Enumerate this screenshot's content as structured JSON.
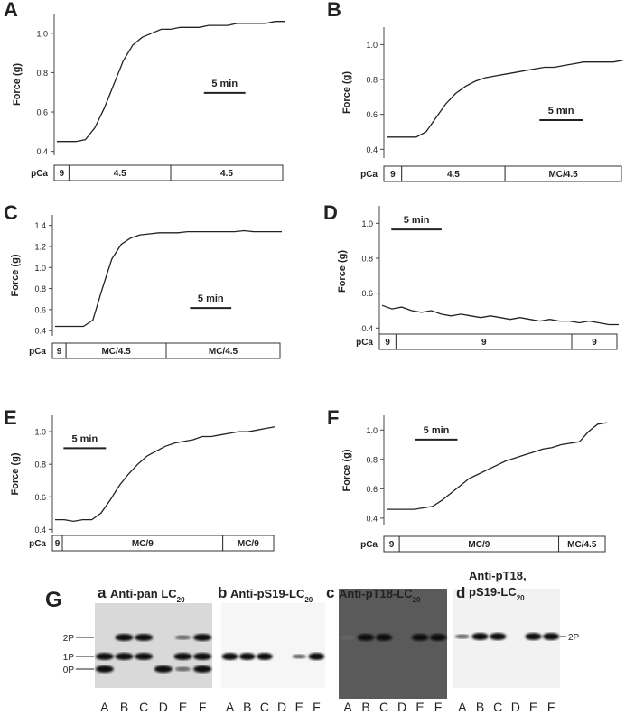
{
  "chart_data": [
    {
      "type": "line",
      "panel_label": "A",
      "ylabel": "Force (g)",
      "ylim": [
        0.38,
        1.1
      ],
      "yticks": [
        0.4,
        0.6,
        0.8,
        {
          "value": 1,
          "label": "1.0"
        }
      ],
      "annotation": "5 min",
      "color": "#222222",
      "values": [
        0.45,
        0.45,
        0.45,
        0.46,
        0.52,
        0.62,
        0.74,
        0.86,
        0.94,
        0.98,
        1.0,
        1.02,
        1.02,
        1.03,
        1.03,
        1.03,
        1.04,
        1.04,
        1.04,
        1.05,
        1.05,
        1.05,
        1.05,
        1.06,
        1.06
      ],
      "protocol": {
        "label": "pCa",
        "segments": [
          "9",
          "4.5",
          "4.5"
        ]
      }
    },
    {
      "type": "line",
      "panel_label": "B",
      "ylabel": "Force (g)",
      "ylim": [
        0.35,
        1.1
      ],
      "yticks": [
        0.4,
        0.6,
        0.8,
        {
          "value": 1,
          "label": "1.0"
        }
      ],
      "annotation": "5 min",
      "color": "#222222",
      "values": [
        0.47,
        0.47,
        0.47,
        0.47,
        0.5,
        0.58,
        0.66,
        0.72,
        0.76,
        0.79,
        0.81,
        0.82,
        0.83,
        0.84,
        0.85,
        0.86,
        0.87,
        0.87,
        0.88,
        0.89,
        0.9,
        0.9,
        0.9,
        0.9,
        0.91
      ],
      "protocol": {
        "label": "pCa",
        "segments": [
          "9",
          "4.5",
          "MC/4.5"
        ]
      }
    },
    {
      "type": "line",
      "panel_label": "C",
      "ylabel": "Force (g)",
      "ylim": [
        0.35,
        1.5
      ],
      "yticks": [
        0.4,
        0.6,
        0.8,
        {
          "value": 1,
          "label": "1.0"
        },
        1.2,
        1.4
      ],
      "annotation": "5 min",
      "color": "#222222",
      "values": [
        0.44,
        0.44,
        0.44,
        0.44,
        0.5,
        0.8,
        1.08,
        1.22,
        1.28,
        1.31,
        1.32,
        1.33,
        1.33,
        1.33,
        1.34,
        1.34,
        1.34,
        1.34,
        1.34,
        1.34,
        1.35,
        1.34,
        1.34,
        1.34,
        1.34
      ],
      "protocol": {
        "label": "pCa",
        "segments": [
          "9",
          "MC/4.5",
          "MC/4.5"
        ]
      }
    },
    {
      "type": "line",
      "panel_label": "D",
      "ylabel": "Force (g)",
      "ylim": [
        0.35,
        1.1
      ],
      "yticks": [
        0.4,
        0.6,
        0.8,
        {
          "value": 1,
          "label": "1.0"
        }
      ],
      "annotation": "5 min",
      "color": "#222222",
      "values": [
        0.53,
        0.51,
        0.52,
        0.5,
        0.49,
        0.5,
        0.48,
        0.47,
        0.48,
        0.47,
        0.46,
        0.47,
        0.46,
        0.45,
        0.46,
        0.45,
        0.44,
        0.45,
        0.44,
        0.44,
        0.43,
        0.44,
        0.43,
        0.42,
        0.42
      ],
      "protocol": {
        "label": "pCa",
        "segments": [
          "9",
          "9",
          "9"
        ]
      }
    },
    {
      "type": "line",
      "panel_label": "E",
      "ylabel": "Force (g)",
      "ylim": [
        0.38,
        1.1
      ],
      "yticks": [
        0.4,
        0.6,
        0.8,
        {
          "value": 1,
          "label": "1.0"
        }
      ],
      "annotation": "5 min",
      "color": "#222222",
      "values": [
        0.46,
        0.46,
        0.45,
        0.46,
        0.46,
        0.5,
        0.58,
        0.67,
        0.74,
        0.8,
        0.85,
        0.88,
        0.91,
        0.93,
        0.94,
        0.95,
        0.97,
        0.97,
        0.98,
        0.99,
        1.0,
        1.0,
        1.01,
        1.02,
        1.03
      ],
      "protocol": {
        "label": "pCa",
        "segments": [
          "9",
          "MC/9",
          "MC/9"
        ]
      }
    },
    {
      "type": "line",
      "panel_label": "F",
      "ylabel": "Force (g)",
      "ylim": [
        0.35,
        1.1
      ],
      "yticks": [
        0.4,
        0.6,
        0.8,
        {
          "value": 1,
          "label": "1.0"
        }
      ],
      "annotation": "5 min",
      "color": "#222222",
      "values": [
        0.46,
        0.46,
        0.46,
        0.46,
        0.47,
        0.48,
        0.52,
        0.57,
        0.62,
        0.67,
        0.7,
        0.73,
        0.76,
        0.79,
        0.81,
        0.83,
        0.85,
        0.87,
        0.88,
        0.9,
        0.91,
        0.92,
        0.99,
        1.04,
        1.05
      ],
      "protocol": {
        "label": "pCa",
        "segments": [
          "9",
          "MC/9",
          "MC/4.5"
        ]
      }
    }
  ],
  "blots": {
    "panel_label": "G",
    "lanes": [
      "A",
      "B",
      "C",
      "D",
      "E",
      "F"
    ],
    "left_marks": [
      "2P",
      "1P",
      "0P"
    ],
    "right_mark": "2P",
    "panels": [
      {
        "letter": "a",
        "title": "Anti-pan LC",
        "sub": "20"
      },
      {
        "letter": "b",
        "title": "Anti-pS19-LC",
        "sub": "20"
      },
      {
        "letter": "c",
        "title": "Anti-pT18-LC",
        "sub": "20"
      },
      {
        "letter": "d",
        "title": "Anti-pT18,",
        "title2": "pS19-LC",
        "sub": "20"
      }
    ]
  }
}
